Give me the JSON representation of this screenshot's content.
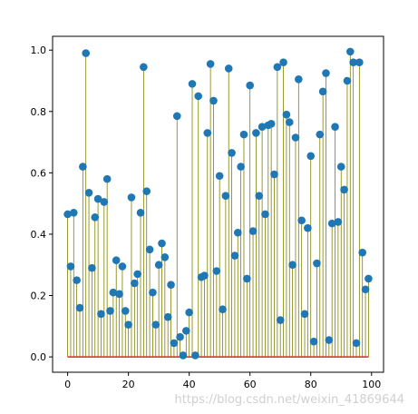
{
  "chart_data": {
    "type": "stem",
    "title": "",
    "xlabel": "",
    "ylabel": "",
    "xlim": [
      -4.95,
      103.95
    ],
    "ylim": [
      -0.05,
      1.045
    ],
    "xticks": [
      0,
      20,
      40,
      60,
      80,
      100
    ],
    "yticks": [
      0.0,
      0.2,
      0.4,
      0.6,
      0.8,
      1.0
    ],
    "xtick_labels": [
      "0",
      "20",
      "40",
      "60",
      "80",
      "100"
    ],
    "ytick_labels": [
      "0.0",
      "0.2",
      "0.4",
      "0.6",
      "0.8",
      "1.0"
    ],
    "grid": false,
    "colors": {
      "marker": "#1f77b4",
      "stem": "#808000",
      "baseline": "#d62728",
      "axes": "#000000"
    },
    "x": [
      0,
      1,
      2,
      3,
      4,
      5,
      6,
      7,
      8,
      9,
      10,
      11,
      12,
      13,
      14,
      15,
      16,
      17,
      18,
      19,
      20,
      21,
      22,
      23,
      24,
      25,
      26,
      27,
      28,
      29,
      30,
      31,
      32,
      33,
      34,
      35,
      36,
      37,
      38,
      39,
      40,
      41,
      42,
      43,
      44,
      45,
      46,
      47,
      48,
      49,
      50,
      51,
      52,
      53,
      54,
      55,
      56,
      57,
      58,
      59,
      60,
      61,
      62,
      63,
      64,
      65,
      66,
      67,
      68,
      69,
      70,
      71,
      72,
      73,
      74,
      75,
      76,
      77,
      78,
      79,
      80,
      81,
      82,
      83,
      84,
      85,
      86,
      87,
      88,
      89,
      90,
      91,
      92,
      93,
      94,
      95,
      96,
      97,
      98,
      99
    ],
    "y": [
      0.465,
      0.295,
      0.47,
      0.25,
      0.16,
      0.62,
      0.99,
      0.535,
      0.29,
      0.455,
      0.515,
      0.14,
      0.505,
      0.58,
      0.15,
      0.21,
      0.315,
      0.205,
      0.295,
      0.15,
      0.105,
      0.52,
      0.24,
      0.27,
      0.47,
      0.945,
      0.54,
      0.35,
      0.21,
      0.105,
      0.3,
      0.37,
      0.325,
      0.13,
      0.235,
      0.045,
      0.785,
      0.065,
      0.005,
      0.085,
      0.145,
      0.89,
      0.005,
      0.85,
      0.26,
      0.265,
      0.73,
      0.955,
      0.835,
      0.28,
      0.59,
      0.155,
      0.525,
      0.94,
      0.665,
      0.33,
      0.405,
      0.62,
      0.725,
      0.255,
      0.885,
      0.41,
      0.73,
      0.525,
      0.75,
      0.465,
      0.755,
      0.76,
      0.595,
      0.945,
      0.12,
      0.96,
      0.79,
      0.765,
      0.3,
      0.715,
      0.905,
      0.445,
      0.14,
      0.42,
      0.655,
      0.05,
      0.305,
      0.725,
      0.865,
      0.925,
      0.055,
      0.435,
      0.75,
      0.44,
      0.62,
      0.545,
      0.9,
      0.995,
      0.96,
      0.045,
      0.96,
      0.34,
      0.22,
      0.255
    ]
  },
  "watermark": "https://blog.csdn.net/weixin_41869644"
}
